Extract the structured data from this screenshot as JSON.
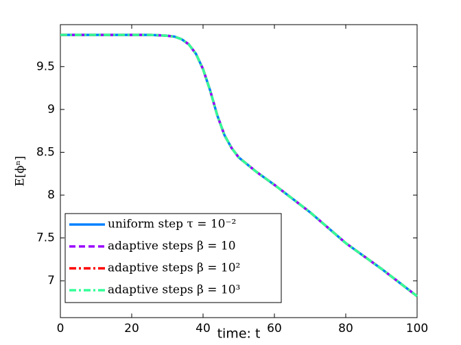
{
  "chart_data": {
    "type": "line",
    "xlabel": "time: t",
    "ylabel": "E[ϕⁿ]",
    "x": [
      0,
      10,
      20,
      25,
      28,
      30,
      32,
      34,
      36,
      38,
      40,
      42,
      44,
      46,
      48,
      50,
      55,
      60,
      65,
      70,
      75,
      80,
      85,
      90,
      95,
      100
    ],
    "series": [
      {
        "name": "uniform step τ = 10⁻²",
        "color": "#0080ff",
        "dash": "solid",
        "values": [
          9.87,
          9.87,
          9.87,
          9.87,
          9.865,
          9.86,
          9.85,
          9.82,
          9.76,
          9.65,
          9.47,
          9.22,
          8.93,
          8.7,
          8.55,
          8.44,
          8.27,
          8.12,
          7.96,
          7.8,
          7.62,
          7.44,
          7.29,
          7.14,
          6.98,
          6.82
        ]
      },
      {
        "name": "adaptive steps β = 10",
        "color": "#9900ff",
        "dash": "dashed",
        "values": [
          9.87,
          9.87,
          9.87,
          9.87,
          9.865,
          9.86,
          9.85,
          9.82,
          9.76,
          9.65,
          9.47,
          9.22,
          8.93,
          8.7,
          8.55,
          8.44,
          8.27,
          8.12,
          7.96,
          7.8,
          7.62,
          7.44,
          7.29,
          7.14,
          6.98,
          6.82
        ]
      },
      {
        "name": "adaptive steps β = 10²",
        "color": "#ff0000",
        "dash": "dashdot",
        "values": [
          9.87,
          9.87,
          9.87,
          9.87,
          9.865,
          9.86,
          9.85,
          9.82,
          9.76,
          9.65,
          9.47,
          9.22,
          8.93,
          8.7,
          8.55,
          8.44,
          8.27,
          8.12,
          7.96,
          7.8,
          7.62,
          7.44,
          7.29,
          7.14,
          6.98,
          6.82
        ]
      },
      {
        "name": "adaptive steps β = 10³",
        "color": "#33ff99",
        "dash": "dashdot",
        "values": [
          9.87,
          9.87,
          9.87,
          9.87,
          9.865,
          9.86,
          9.85,
          9.82,
          9.76,
          9.65,
          9.47,
          9.22,
          8.93,
          8.7,
          8.55,
          8.44,
          8.27,
          8.12,
          7.96,
          7.8,
          7.62,
          7.44,
          7.29,
          7.14,
          6.98,
          6.82
        ]
      }
    ],
    "xlim": [
      0,
      100
    ],
    "xticks": [
      0,
      20,
      40,
      60,
      80,
      100
    ],
    "ylim": [
      6.57,
      9.99
    ],
    "yticks": [
      7,
      7.5,
      8,
      8.5,
      9,
      9.5
    ],
    "legend": "lower left"
  }
}
